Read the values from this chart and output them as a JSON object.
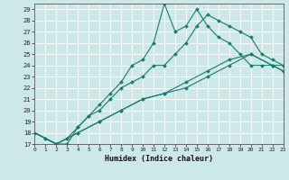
{
  "xlabel": "Humidex (Indice chaleur)",
  "ylabel": "",
  "xlim": [
    0,
    23
  ],
  "ylim": [
    17,
    29.5
  ],
  "yticks": [
    17,
    18,
    19,
    20,
    21,
    22,
    23,
    24,
    25,
    26,
    27,
    28,
    29
  ],
  "xticks": [
    0,
    1,
    2,
    3,
    4,
    5,
    6,
    7,
    8,
    9,
    10,
    11,
    12,
    13,
    14,
    15,
    16,
    17,
    18,
    19,
    20,
    21,
    22,
    23
  ],
  "line_color": "#1a7a6e",
  "bg_color": "#cce8e8",
  "grid_color": "#b0d8d8",
  "lines": [
    {
      "x": [
        0,
        1,
        2,
        3,
        4,
        5,
        6,
        7,
        8,
        9,
        10,
        11,
        12,
        13,
        14,
        15,
        16,
        17,
        18,
        19,
        20,
        21,
        22,
        23
      ],
      "y": [
        18,
        17.5,
        17,
        17,
        18.5,
        19.5,
        20.5,
        21.5,
        22.5,
        24,
        24.5,
        26,
        29.5,
        27,
        27.5,
        29,
        27.5,
        26.5,
        26,
        25,
        24,
        24,
        24,
        24
      ]
    },
    {
      "x": [
        0,
        1,
        2,
        3,
        4,
        5,
        6,
        7,
        8,
        9,
        10,
        11,
        12,
        13,
        14,
        15,
        16,
        17,
        18,
        19,
        20,
        21,
        22,
        23
      ],
      "y": [
        18,
        17.5,
        17,
        17.5,
        18.5,
        19.5,
        20,
        21,
        22,
        22.5,
        23,
        24,
        24,
        25,
        26,
        27.5,
        28.5,
        28,
        27.5,
        27,
        26.5,
        25,
        24.5,
        24
      ]
    },
    {
      "x": [
        0,
        2,
        4,
        6,
        8,
        10,
        12,
        14,
        16,
        18,
        20,
        22,
        23
      ],
      "y": [
        18,
        17,
        18,
        19,
        20,
        21,
        21.5,
        22.5,
        23.5,
        24.5,
        25,
        24,
        23.5
      ]
    },
    {
      "x": [
        0,
        2,
        4,
        6,
        8,
        10,
        12,
        14,
        16,
        18,
        20,
        22,
        23
      ],
      "y": [
        18,
        17,
        18,
        19,
        20,
        21,
        21.5,
        22,
        23,
        24,
        25,
        24,
        23.5
      ]
    }
  ]
}
